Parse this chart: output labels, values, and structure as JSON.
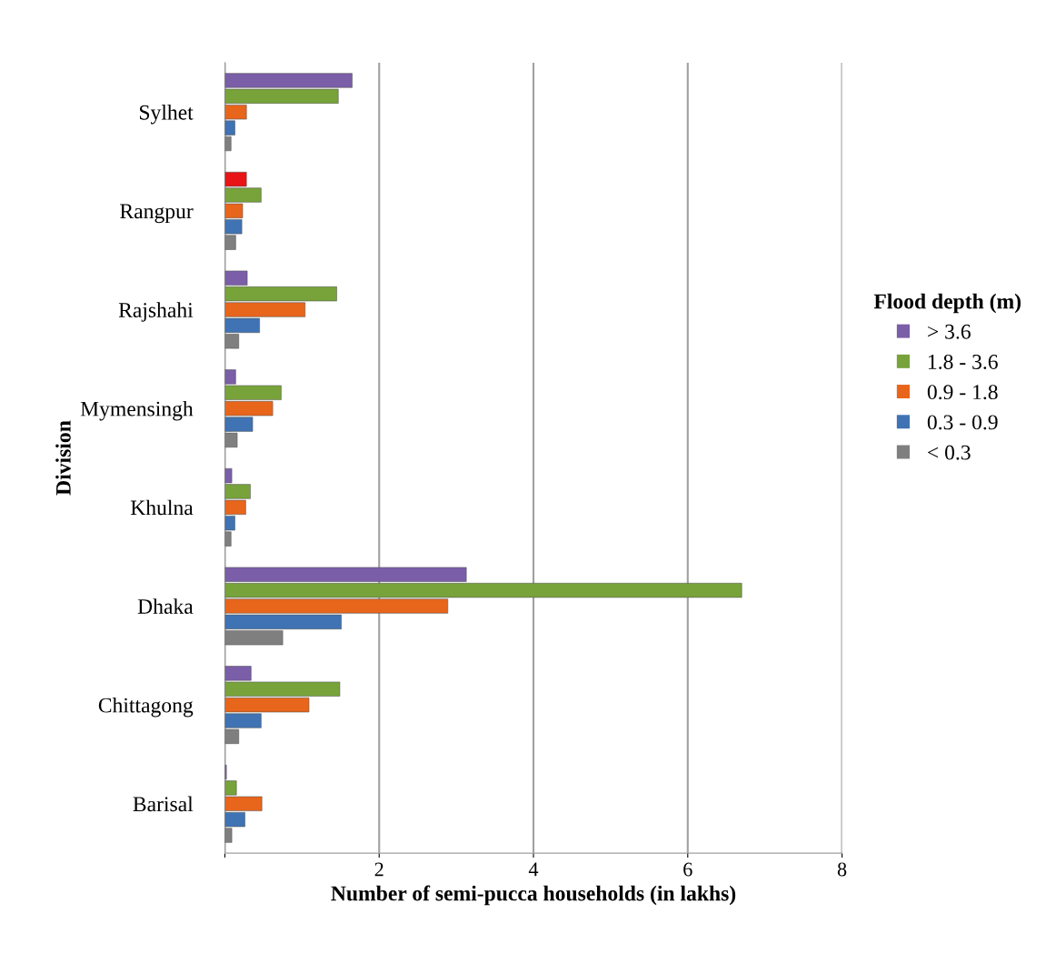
{
  "chart_data": {
    "type": "bar",
    "orientation": "horizontal",
    "xlabel": "Number of semi-pucca households (in lakhs)",
    "ylabel": "Division",
    "legend_title": "Flood depth (m)",
    "categories": [
      "Sylhet",
      "Rangpur",
      "Rajshahi",
      "Mymensingh",
      "Khulna",
      "Dhaka",
      "Chittagong",
      "Barisal"
    ],
    "series": [
      {
        "name": "> 3.6",
        "color": "#7a5ea8",
        "colors": [
          "#7a5ea8",
          "#e81416",
          "#7a5ea8",
          "#7a5ea8",
          "#7a5ea8",
          "#7a5ea8",
          "#7a5ea8",
          "#7a5ea8"
        ],
        "values": [
          1.65,
          0.28,
          0.29,
          0.14,
          0.09,
          3.13,
          0.34,
          0.02
        ]
      },
      {
        "name": "1.8 - 3.6",
        "color": "#77a33a",
        "values": [
          1.47,
          0.47,
          1.45,
          0.73,
          0.33,
          6.7,
          1.49,
          0.15
        ]
      },
      {
        "name": "0.9 - 1.8",
        "color": "#e8651c",
        "values": [
          0.28,
          0.23,
          1.04,
          0.62,
          0.27,
          2.89,
          1.09,
          0.48
        ]
      },
      {
        "name": "0.3 - 0.9",
        "color": "#3f73b3",
        "values": [
          0.13,
          0.22,
          0.45,
          0.36,
          0.13,
          1.51,
          0.47,
          0.26
        ]
      },
      {
        "name": "< 0.3",
        "color": "#7f7f7f",
        "values": [
          0.08,
          0.14,
          0.18,
          0.16,
          0.08,
          0.75,
          0.18,
          0.09
        ]
      }
    ],
    "xlim": [
      0,
      8
    ],
    "xticks": [
      {
        "value": 0,
        "label": null
      },
      2,
      4,
      6,
      8
    ],
    "grid": "x",
    "legend": "right"
  }
}
